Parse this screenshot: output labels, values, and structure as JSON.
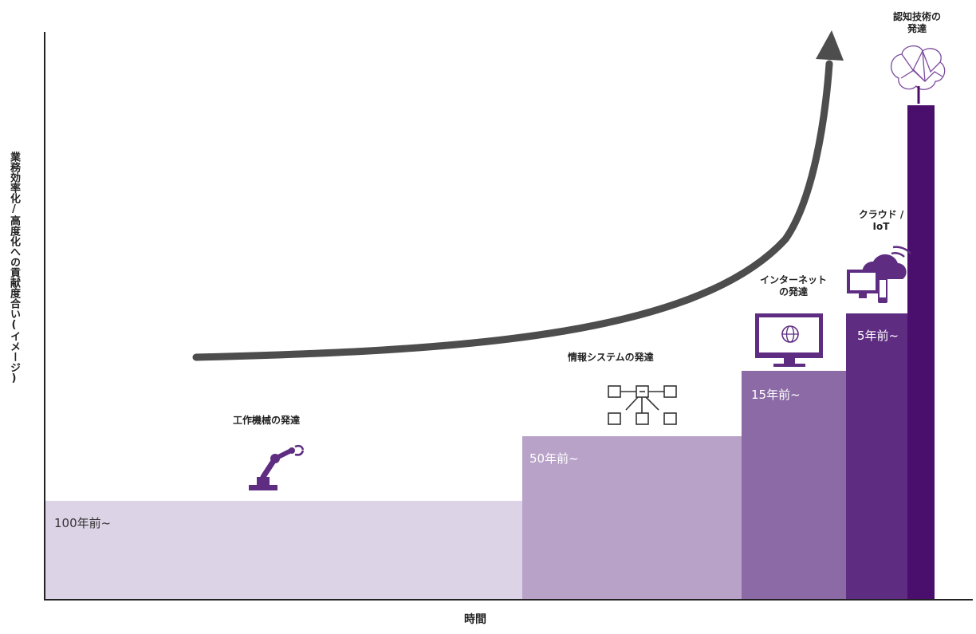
{
  "axes": {
    "y_label": "業務効率化/高度化への貢献度合い(イメージ)",
    "x_label": "時間"
  },
  "eras": [
    {
      "title": "工作機械の発達",
      "period": "100年前~",
      "level": 0.16,
      "color": "#ddd3e7",
      "label_color": "#333333",
      "icon": "robot-arm-icon"
    },
    {
      "title": "情報システムの発達",
      "period": "50年前~",
      "level": 0.27,
      "color": "#b8a2c8",
      "label_color": "#ffffff",
      "icon": "network-icon"
    },
    {
      "title_lines": [
        "インターネット",
        "の発達"
      ],
      "period": "15年前~",
      "level": 0.39,
      "color": "#8c6aa5",
      "label_color": "#ffffff",
      "icon": "monitor-globe-icon"
    },
    {
      "title_lines": [
        "クラウド /",
        "IoT"
      ],
      "period": "5年前~",
      "level": 0.49,
      "color": "#5e2d82",
      "label_color": "#ffffff",
      "icon": "cloud-device-icon"
    },
    {
      "title_lines": [
        "認知技術の",
        "発達"
      ],
      "period": "",
      "level": 0.85,
      "color": "#4a0f6d",
      "label_color": "#ffffff",
      "icon": "brain-icon"
    }
  ],
  "colors": {
    "axis": "#222222",
    "arrow": "#4d4d4d",
    "icon_purple": "#5e2d82"
  }
}
